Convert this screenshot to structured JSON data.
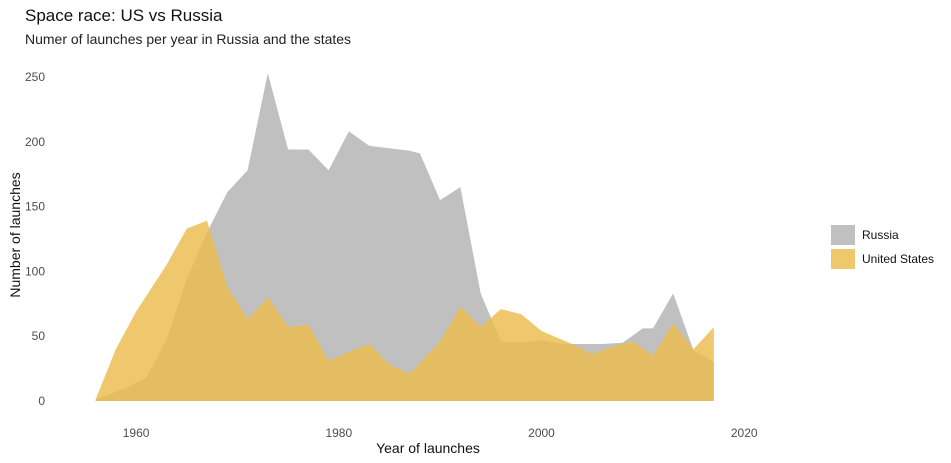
{
  "chart_data": {
    "type": "area",
    "title": "Space race: US vs Russia",
    "subtitle": "Numer of launches per year in Russia and the states",
    "xlabel": "Year of launches",
    "ylabel": "Number of launches",
    "xlim": [
      1952,
      2026
    ],
    "ylim": [
      0,
      260
    ],
    "x_ticks": [
      1960,
      1980,
      2000,
      2020
    ],
    "y_ticks": [
      0,
      50,
      100,
      150,
      200,
      250
    ],
    "grid": false,
    "legend_position": "right",
    "series": [
      {
        "name": "Russia",
        "color": "#bdbdbd",
        "x": [
          1956,
          1959,
          1961,
          1963,
          1965,
          1967,
          1969,
          1971,
          1973,
          1975,
          1977,
          1979,
          1981,
          1983,
          1985,
          1987,
          1988,
          1990,
          1992,
          1994,
          1996,
          1998,
          2000,
          2002,
          2004,
          2006,
          2008,
          2010,
          2011,
          2013,
          2015,
          2017
        ],
        "values": [
          1,
          10,
          18,
          47,
          94,
          130,
          161,
          178,
          253,
          194,
          194,
          178,
          208,
          197,
          195,
          193,
          191,
          155,
          165,
          83,
          46,
          45,
          47,
          44,
          44,
          44,
          45,
          56,
          56,
          83,
          39,
          30
        ]
      },
      {
        "name": "United States",
        "color": "#ebbb4d",
        "x": [
          1956,
          1958,
          1960,
          1963,
          1965,
          1967,
          1969,
          1971,
          1973,
          1975,
          1977,
          1979,
          1981,
          1983,
          1985,
          1987,
          1990,
          1992,
          1994,
          1996,
          1998,
          2000,
          2003,
          2005,
          2007,
          2009,
          2011,
          2013,
          2015,
          2017
        ],
        "values": [
          1,
          40,
          69,
          105,
          133,
          139,
          88,
          63,
          80,
          57,
          59,
          31,
          38,
          44,
          28,
          21,
          46,
          73,
          57,
          71,
          67,
          54,
          44,
          36,
          42,
          46,
          35,
          60,
          40,
          57
        ]
      }
    ]
  }
}
